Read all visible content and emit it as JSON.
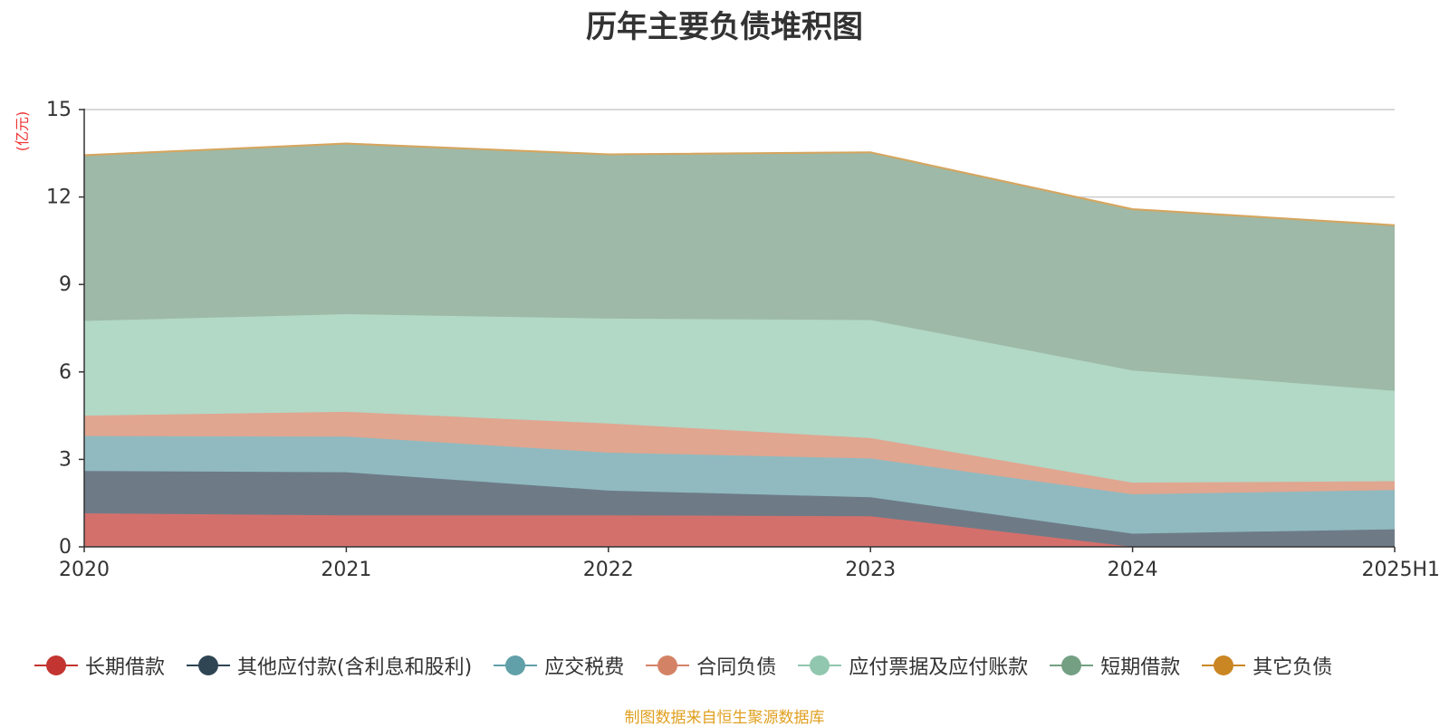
{
  "chart_data": {
    "type": "area",
    "stacked": true,
    "title": "历年主要负债堆积图",
    "ylabel": "(亿元)",
    "xlabel": "",
    "categories": [
      "2020",
      "2021",
      "2022",
      "2023",
      "2024",
      "2025H1"
    ],
    "ylim": [
      0,
      15
    ],
    "yticks": [
      0,
      3,
      6,
      9,
      12,
      15
    ],
    "grid": true,
    "legend_position": "bottom",
    "series": [
      {
        "name": "长期借款",
        "color": "#c23531",
        "fill": "#d4706c",
        "values": [
          1.15,
          1.08,
          1.08,
          1.05,
          0.0,
          0.0
        ]
      },
      {
        "name": "其他应付款(含利息和股利)",
        "color": "#2f4554",
        "fill": "#6e7b87",
        "values": [
          1.45,
          1.48,
          0.85,
          0.65,
          0.45,
          0.6
        ]
      },
      {
        "name": "应交税费",
        "color": "#61a0a8",
        "fill": "#90bac0",
        "values": [
          1.2,
          1.22,
          1.3,
          1.33,
          1.35,
          1.35
        ]
      },
      {
        "name": "合同负债",
        "color": "#d48265",
        "fill": "#e0a690",
        "values": [
          0.7,
          0.85,
          1.0,
          0.7,
          0.4,
          0.3
        ]
      },
      {
        "name": "应付票据及应付账款",
        "color": "#91c7ae",
        "fill": "#b2d8c6",
        "values": [
          3.25,
          3.35,
          3.6,
          4.05,
          3.85,
          3.1
        ]
      },
      {
        "name": "短期借款",
        "color": "#749f83",
        "fill": "#9eb9a7",
        "values": [
          5.65,
          5.82,
          5.6,
          5.72,
          5.5,
          5.65
        ]
      },
      {
        "name": "其它负债",
        "color": "#ca8622",
        "fill": "#d6a55e",
        "values": [
          0.05,
          0.05,
          0.05,
          0.05,
          0.05,
          0.05
        ]
      }
    ],
    "source_note": "制图数据来自恒生聚源数据库"
  }
}
